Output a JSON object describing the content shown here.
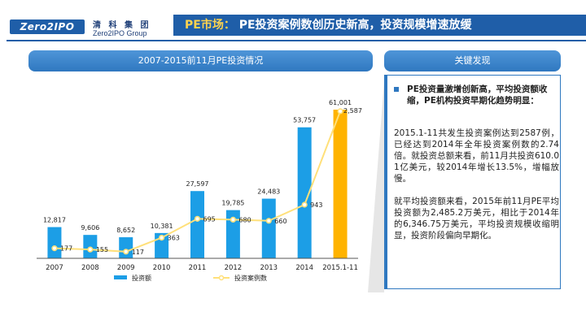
{
  "header": {
    "logo_text": "Zero2IPO",
    "logo_cn": "清 科 集 团",
    "logo_en": "Zero2IPO Group",
    "title_prefix": "PE市场：",
    "title_main": "PE投资案例数创历史新高，投资规模增速放缓"
  },
  "colors": {
    "brand": "#1f5ea8",
    "bar_regular": "#1c9ee6",
    "bar_highlight": "#ffb300",
    "line": "#ffe07a"
  },
  "left_panel_title": "2007-2015前11月PE投资情况",
  "right_panel_title": "关键发现",
  "chart_data": {
    "type": "bar",
    "categories": [
      "2007",
      "2008",
      "2009",
      "2010",
      "2011",
      "2012",
      "2013",
      "2014",
      "2015.1-11"
    ],
    "series": [
      {
        "name": "投资额",
        "type": "bar",
        "values": [
          12817,
          9606,
          8652,
          10381,
          27597,
          19785,
          24483,
          53757,
          61001
        ],
        "labels": [
          "12,817",
          "9,606",
          "8,652",
          "10,381",
          "27,597",
          "19,785",
          "24,483",
          "53,757",
          "61,001"
        ]
      },
      {
        "name": "投资案例数",
        "type": "line",
        "values": [
          177,
          155,
          117,
          363,
          695,
          680,
          660,
          943,
          2587
        ],
        "labels": [
          "177",
          "155",
          "117",
          "363",
          "695",
          "680",
          "660",
          "943",
          "2,587"
        ]
      }
    ],
    "highlight_category": "2015.1-11",
    "bar_ylim": [
      0,
      70000
    ],
    "line_ylim": [
      0,
      3000
    ],
    "legend": [
      "投资额",
      "投资案例数"
    ],
    "legend_position": "bottom"
  },
  "findings": {
    "headline": "PE投资量激增创新高，平均投资额收缩，PE机构投资早期化趋势明显：",
    "paragraph1": "2015.1-11共发生投资案例达到2587例，已经达到2014年全年投资案例数的2.74倍。就投资总额来看，前11月共投资610.01亿美元，较2014年增长13.5%，增幅放慢。",
    "paragraph2": "就平均投资额来看，2015年前11月PE平均投资额为2,485.2万美元，相比于2014年的6,346.75万美元，平均投资规模收缩明显，投资阶段偏向早期化。"
  }
}
